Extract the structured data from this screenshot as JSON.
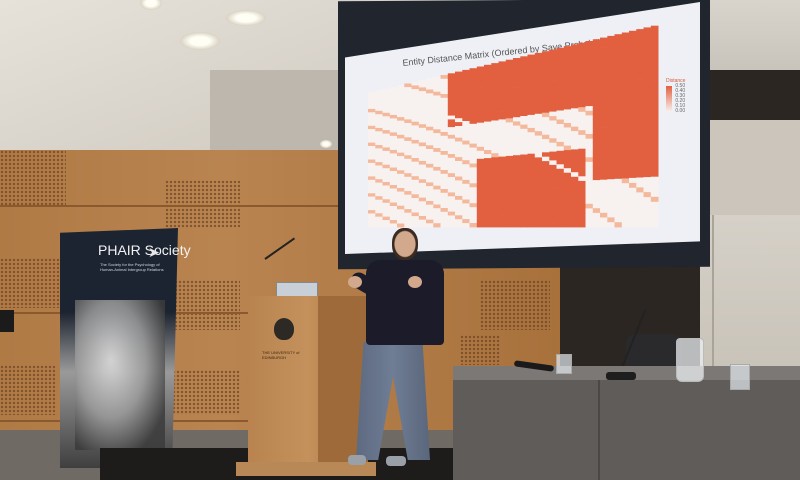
{
  "slide": {
    "title": "Entity Distance Matrix (Ordered by Save Probability)",
    "legend_title": "Distance",
    "legend_ticks": [
      "0.50",
      "0.40",
      "0.30",
      "0.20",
      "0.10",
      "0.00"
    ],
    "palette": {
      "high": "#e2603f",
      "mid": "#f4b99c",
      "low": "#f7f2f0"
    }
  },
  "banner": {
    "title": "PHAIR Society",
    "subtitle": "The Society for the Psychology of Human-Animal Intergroup Relations"
  },
  "podium": {
    "text": "THE UNIVERSITY of EDINBURGH"
  },
  "colors": {
    "wood": "#b07a45",
    "screen_frame": "#20252e",
    "sweater": "#1c1b2a",
    "jeans": "#6f7d95"
  }
}
